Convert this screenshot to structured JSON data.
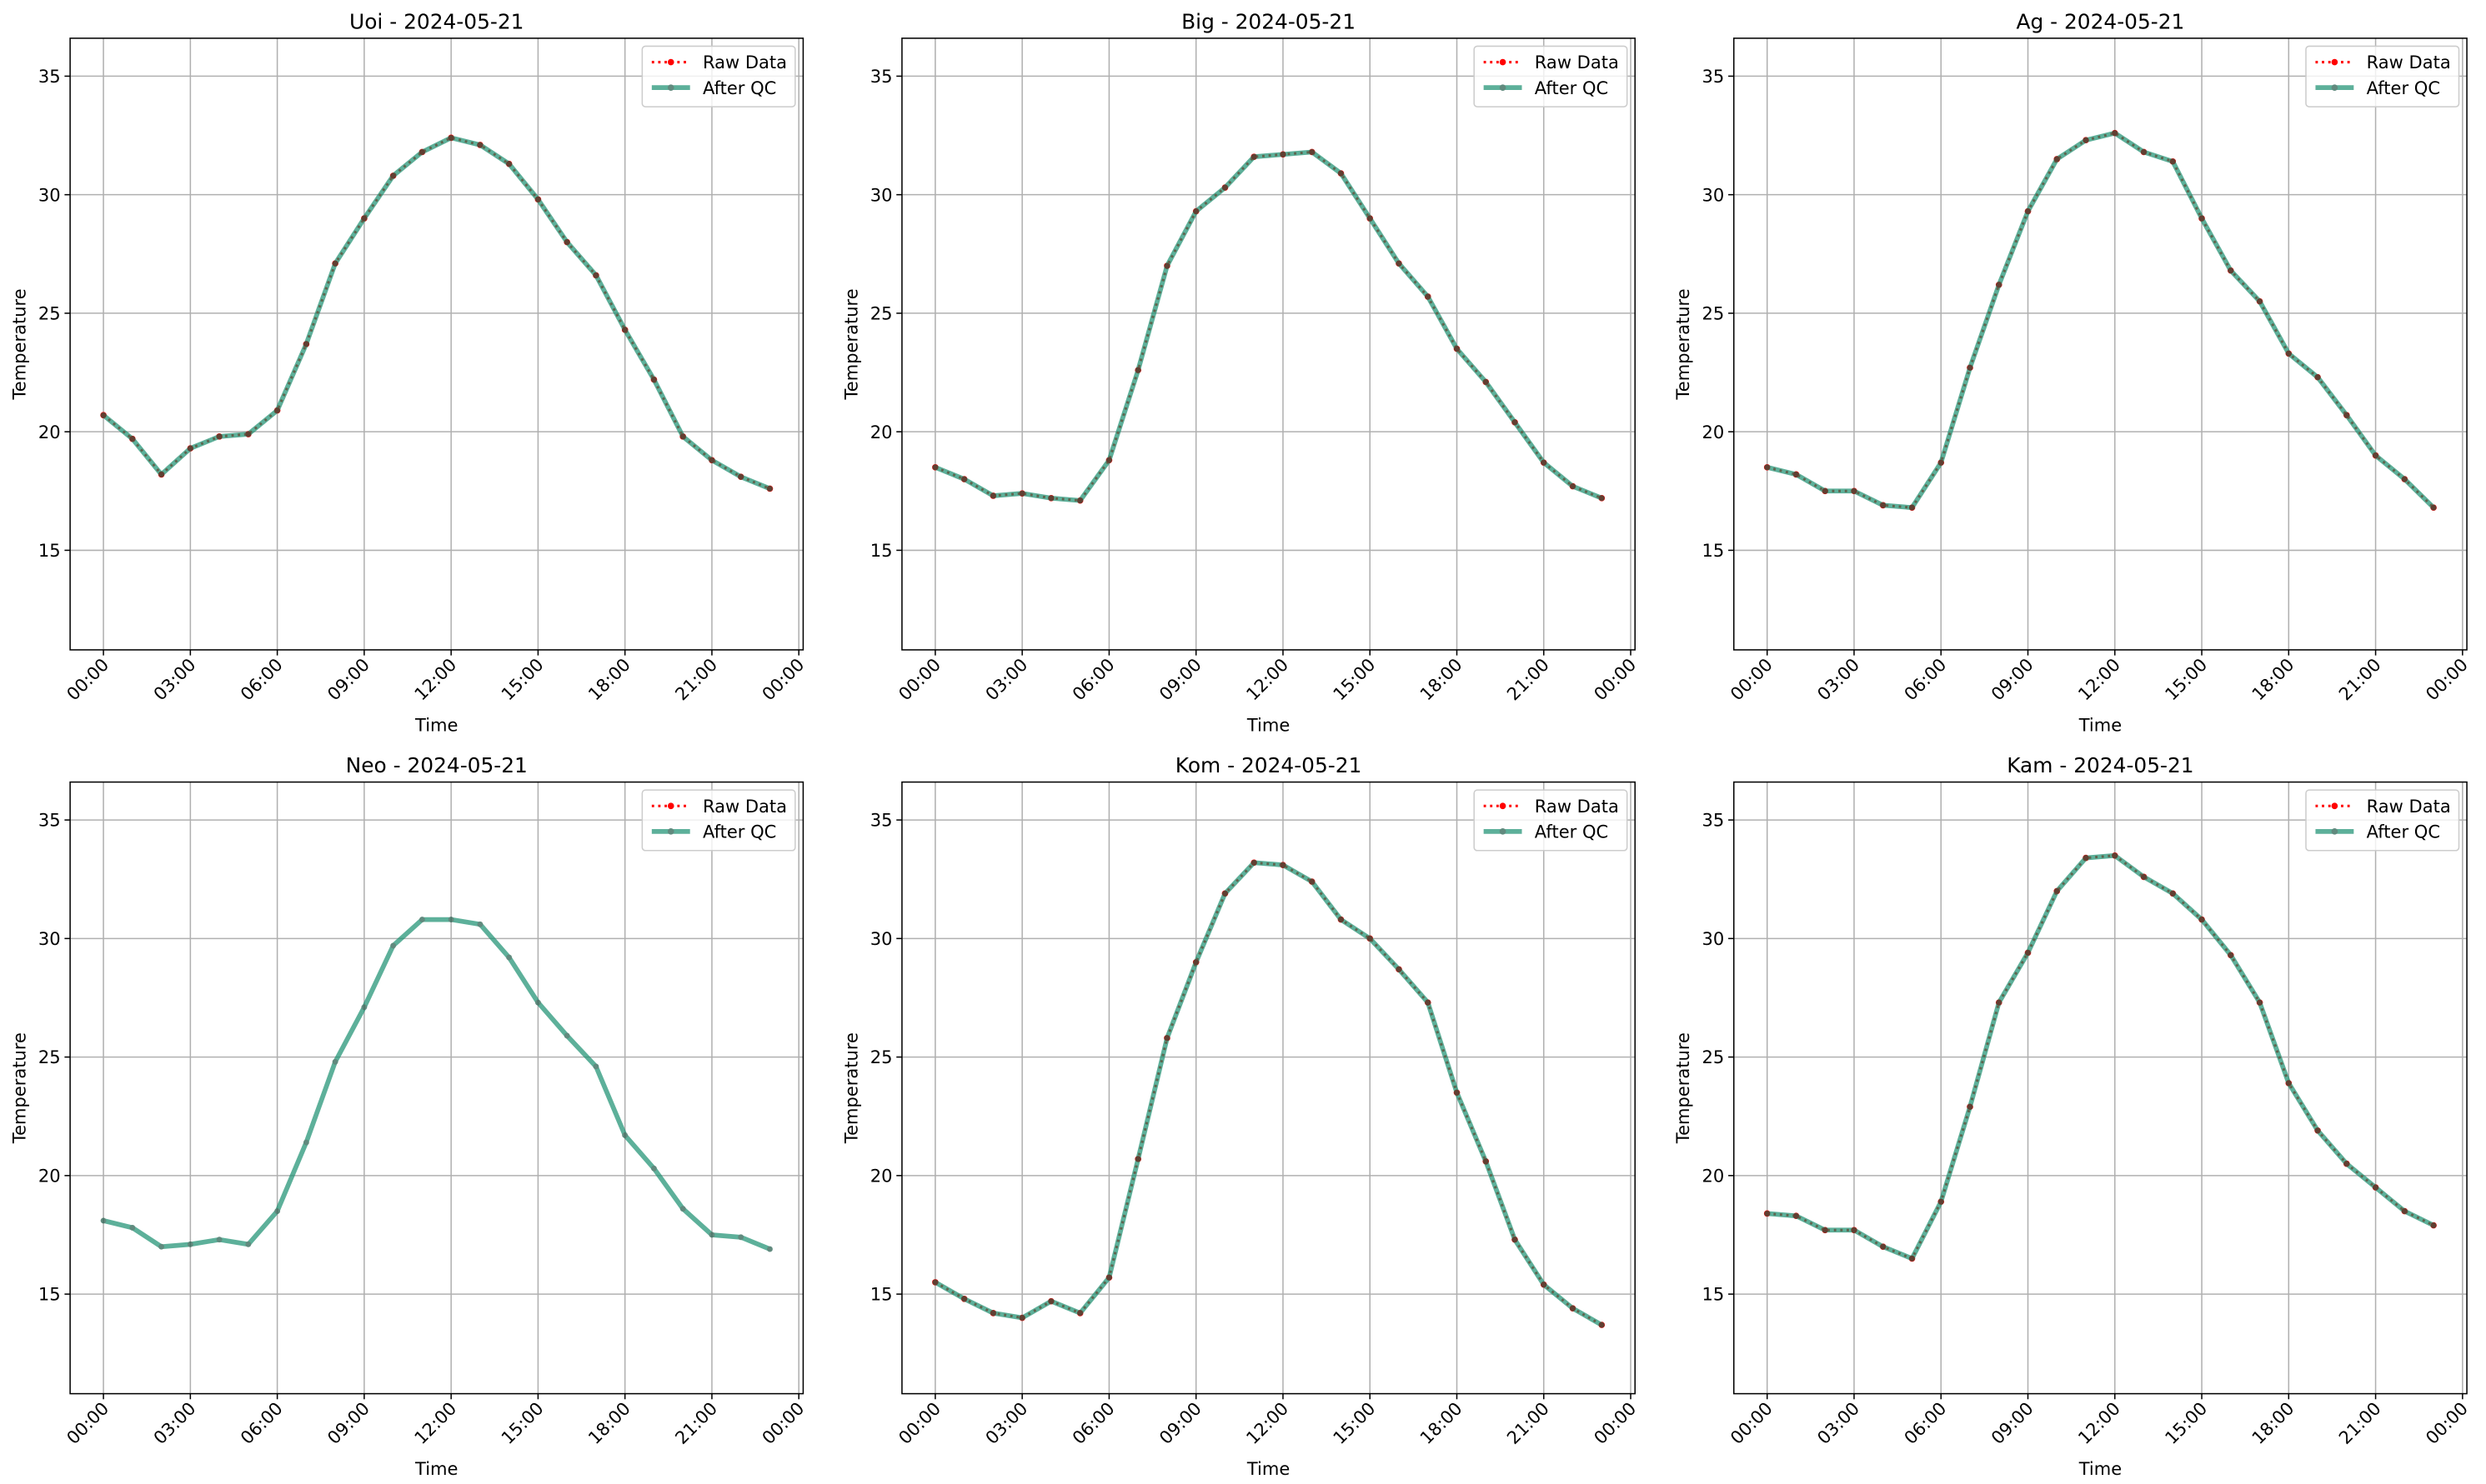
{
  "chart_data": [
    {
      "type": "line",
      "title": "Uoi - 2024-05-21",
      "xlabel": "Time",
      "ylabel": "Temperature",
      "x": [
        0,
        1,
        2,
        3,
        4,
        5,
        6,
        7,
        8,
        9,
        10,
        11,
        12,
        13,
        14,
        15,
        16,
        17,
        18,
        19,
        20,
        21,
        22,
        23
      ],
      "xlim": [
        -1.15,
        24.15
      ],
      "xticks": [
        {
          "value": 0,
          "label": "00:00"
        },
        {
          "value": 3,
          "label": "03:00"
        },
        {
          "value": 6,
          "label": "06:00"
        },
        {
          "value": 9,
          "label": "09:00"
        },
        {
          "value": 12,
          "label": "12:00"
        },
        {
          "value": 15,
          "label": "15:00"
        },
        {
          "value": 18,
          "label": "18:00"
        },
        {
          "value": 21,
          "label": "21:00"
        },
        {
          "value": 24,
          "label": "00:00"
        }
      ],
      "ylim": [
        10.8,
        36.6
      ],
      "yticks": [
        15,
        20,
        25,
        30,
        35
      ],
      "grid": true,
      "legend": "upper right",
      "series": [
        {
          "name": "Raw Data",
          "color": "#ff0000",
          "values": [
            20.7,
            19.7,
            18.2,
            19.3,
            19.8,
            19.9,
            20.9,
            23.7,
            27.1,
            29.0,
            30.8,
            31.8,
            32.4,
            32.1,
            31.3,
            29.8,
            28.0,
            26.6,
            24.3,
            22.2,
            19.8,
            18.8,
            18.1,
            17.6
          ]
        },
        {
          "name": "After QC",
          "color": "#1a9070",
          "values": [
            20.7,
            19.7,
            18.2,
            19.3,
            19.8,
            19.9,
            20.9,
            23.7,
            27.1,
            29.0,
            30.8,
            31.8,
            32.4,
            32.1,
            31.3,
            29.8,
            28.0,
            26.6,
            24.3,
            22.2,
            19.8,
            18.8,
            18.1,
            17.6
          ]
        }
      ]
    },
    {
      "type": "line",
      "title": "Big - 2024-05-21",
      "xlabel": "Time",
      "ylabel": "Temperature",
      "x": [
        0,
        1,
        2,
        3,
        4,
        5,
        6,
        7,
        8,
        9,
        10,
        11,
        12,
        13,
        14,
        15,
        16,
        17,
        18,
        19,
        20,
        21,
        22,
        23
      ],
      "xlim": [
        -1.15,
        24.15
      ],
      "xticks": [
        {
          "value": 0,
          "label": "00:00"
        },
        {
          "value": 3,
          "label": "03:00"
        },
        {
          "value": 6,
          "label": "06:00"
        },
        {
          "value": 9,
          "label": "09:00"
        },
        {
          "value": 12,
          "label": "12:00"
        },
        {
          "value": 15,
          "label": "15:00"
        },
        {
          "value": 18,
          "label": "18:00"
        },
        {
          "value": 21,
          "label": "21:00"
        },
        {
          "value": 24,
          "label": "00:00"
        }
      ],
      "ylim": [
        10.8,
        36.6
      ],
      "yticks": [
        15,
        20,
        25,
        30,
        35
      ],
      "grid": true,
      "legend": "upper right",
      "series": [
        {
          "name": "Raw Data",
          "color": "#ff0000",
          "values": [
            18.5,
            18.0,
            17.3,
            17.4,
            17.2,
            17.1,
            18.8,
            22.6,
            27.0,
            29.3,
            30.3,
            31.6,
            31.7,
            31.8,
            30.9,
            29.0,
            27.1,
            25.7,
            23.5,
            22.1,
            20.4,
            18.7,
            17.7,
            17.2
          ]
        },
        {
          "name": "After QC",
          "color": "#1a9070",
          "values": [
            18.5,
            18.0,
            17.3,
            17.4,
            17.2,
            17.1,
            18.8,
            22.6,
            27.0,
            29.3,
            30.3,
            31.6,
            31.7,
            31.8,
            30.9,
            29.0,
            27.1,
            25.7,
            23.5,
            22.1,
            20.4,
            18.7,
            17.7,
            17.2
          ]
        }
      ]
    },
    {
      "type": "line",
      "title": "Ag - 2024-05-21",
      "xlabel": "Time",
      "ylabel": "Temperature",
      "x": [
        0,
        1,
        2,
        3,
        4,
        5,
        6,
        7,
        8,
        9,
        10,
        11,
        12,
        13,
        14,
        15,
        16,
        17,
        18,
        19,
        20,
        21,
        22,
        23
      ],
      "xlim": [
        -1.15,
        24.15
      ],
      "xticks": [
        {
          "value": 0,
          "label": "00:00"
        },
        {
          "value": 3,
          "label": "03:00"
        },
        {
          "value": 6,
          "label": "06:00"
        },
        {
          "value": 9,
          "label": "09:00"
        },
        {
          "value": 12,
          "label": "12:00"
        },
        {
          "value": 15,
          "label": "15:00"
        },
        {
          "value": 18,
          "label": "18:00"
        },
        {
          "value": 21,
          "label": "21:00"
        },
        {
          "value": 24,
          "label": "00:00"
        }
      ],
      "ylim": [
        10.8,
        36.6
      ],
      "yticks": [
        15,
        20,
        25,
        30,
        35
      ],
      "grid": true,
      "legend": "upper right",
      "series": [
        {
          "name": "Raw Data",
          "color": "#ff0000",
          "values": [
            18.5,
            18.2,
            17.5,
            17.5,
            16.9,
            16.8,
            18.7,
            22.7,
            26.2,
            29.3,
            31.5,
            32.3,
            32.6,
            31.8,
            31.4,
            29.0,
            26.8,
            25.5,
            23.3,
            22.3,
            20.7,
            19.0,
            18.0,
            16.8
          ]
        },
        {
          "name": "After QC",
          "color": "#1a9070",
          "values": [
            18.5,
            18.2,
            17.5,
            17.5,
            16.9,
            16.8,
            18.7,
            22.7,
            26.2,
            29.3,
            31.5,
            32.3,
            32.6,
            31.8,
            31.4,
            29.0,
            26.8,
            25.5,
            23.3,
            22.3,
            20.7,
            19.0,
            18.0,
            16.8
          ]
        }
      ]
    },
    {
      "type": "line",
      "title": "Neo - 2024-05-21",
      "xlabel": "Time",
      "ylabel": "Temperature",
      "x": [
        0,
        1,
        2,
        3,
        4,
        5,
        6,
        7,
        8,
        9,
        10,
        11,
        12,
        13,
        14,
        15,
        16,
        17,
        18,
        19,
        20,
        21,
        22,
        23
      ],
      "xlim": [
        -1.15,
        24.15
      ],
      "xticks": [
        {
          "value": 0,
          "label": "00:00"
        },
        {
          "value": 3,
          "label": "03:00"
        },
        {
          "value": 6,
          "label": "06:00"
        },
        {
          "value": 9,
          "label": "09:00"
        },
        {
          "value": 12,
          "label": "12:00"
        },
        {
          "value": 15,
          "label": "15:00"
        },
        {
          "value": 18,
          "label": "18:00"
        },
        {
          "value": 21,
          "label": "21:00"
        },
        {
          "value": 24,
          "label": "00:00"
        }
      ],
      "ylim": [
        10.8,
        36.6
      ],
      "yticks": [
        15,
        20,
        25,
        30,
        35
      ],
      "grid": true,
      "legend": "upper right",
      "series": [
        {
          "name": "Raw Data",
          "color": "#ff0000",
          "values": [
            null,
            null,
            null,
            null,
            null,
            null,
            null,
            null,
            null,
            null,
            null,
            null,
            null,
            null,
            null,
            null,
            null,
            null,
            null,
            null,
            null,
            null,
            null,
            null
          ]
        },
        {
          "name": "After QC",
          "color": "#1a9070",
          "values": [
            18.1,
            17.8,
            17.0,
            17.1,
            17.3,
            17.1,
            18.5,
            21.4,
            24.8,
            27.1,
            29.7,
            30.8,
            30.8,
            30.6,
            29.2,
            27.3,
            25.9,
            24.6,
            21.7,
            20.3,
            18.6,
            17.5,
            17.4,
            16.9
          ]
        }
      ]
    },
    {
      "type": "line",
      "title": "Kom - 2024-05-21",
      "xlabel": "Time",
      "ylabel": "Temperature",
      "x": [
        0,
        1,
        2,
        3,
        4,
        5,
        6,
        7,
        8,
        9,
        10,
        11,
        12,
        13,
        14,
        15,
        16,
        17,
        18,
        19,
        20,
        21,
        22,
        23
      ],
      "xlim": [
        -1.15,
        24.15
      ],
      "xticks": [
        {
          "value": 0,
          "label": "00:00"
        },
        {
          "value": 3,
          "label": "03:00"
        },
        {
          "value": 6,
          "label": "06:00"
        },
        {
          "value": 9,
          "label": "09:00"
        },
        {
          "value": 12,
          "label": "12:00"
        },
        {
          "value": 15,
          "label": "15:00"
        },
        {
          "value": 18,
          "label": "18:00"
        },
        {
          "value": 21,
          "label": "21:00"
        },
        {
          "value": 24,
          "label": "00:00"
        }
      ],
      "ylim": [
        10.8,
        36.6
      ],
      "yticks": [
        15,
        20,
        25,
        30,
        35
      ],
      "grid": true,
      "legend": "upper right",
      "series": [
        {
          "name": "Raw Data",
          "color": "#ff0000",
          "values": [
            15.5,
            14.8,
            14.2,
            14.0,
            14.7,
            14.2,
            15.7,
            20.7,
            25.8,
            29.0,
            31.9,
            33.2,
            33.1,
            32.4,
            30.8,
            30.0,
            28.7,
            27.3,
            23.5,
            20.6,
            17.3,
            15.4,
            14.4,
            13.7
          ]
        },
        {
          "name": "After QC",
          "color": "#1a9070",
          "values": [
            15.5,
            14.8,
            14.2,
            14.0,
            14.7,
            14.2,
            15.7,
            20.7,
            25.8,
            29.0,
            31.9,
            33.2,
            33.1,
            32.4,
            30.8,
            30.0,
            28.7,
            27.3,
            23.5,
            20.6,
            17.3,
            15.4,
            14.4,
            13.7
          ]
        }
      ]
    },
    {
      "type": "line",
      "title": "Kam - 2024-05-21",
      "xlabel": "Time",
      "ylabel": "Temperature",
      "x": [
        0,
        1,
        2,
        3,
        4,
        5,
        6,
        7,
        8,
        9,
        10,
        11,
        12,
        13,
        14,
        15,
        16,
        17,
        18,
        19,
        20,
        21,
        22,
        23
      ],
      "xlim": [
        -1.15,
        24.15
      ],
      "xticks": [
        {
          "value": 0,
          "label": "00:00"
        },
        {
          "value": 3,
          "label": "03:00"
        },
        {
          "value": 6,
          "label": "06:00"
        },
        {
          "value": 9,
          "label": "09:00"
        },
        {
          "value": 12,
          "label": "12:00"
        },
        {
          "value": 15,
          "label": "15:00"
        },
        {
          "value": 18,
          "label": "18:00"
        },
        {
          "value": 21,
          "label": "21:00"
        },
        {
          "value": 24,
          "label": "00:00"
        }
      ],
      "ylim": [
        10.8,
        36.6
      ],
      "yticks": [
        15,
        20,
        25,
        30,
        35
      ],
      "grid": true,
      "legend": "upper right",
      "series": [
        {
          "name": "Raw Data",
          "color": "#ff0000",
          "values": [
            18.4,
            18.3,
            17.7,
            17.7,
            17.0,
            16.5,
            18.9,
            22.9,
            27.3,
            29.4,
            32.0,
            33.4,
            33.5,
            32.6,
            31.9,
            30.8,
            29.3,
            27.3,
            23.9,
            21.9,
            20.5,
            19.5,
            18.5,
            17.9
          ]
        },
        {
          "name": "After QC",
          "color": "#1a9070",
          "values": [
            18.4,
            18.3,
            17.7,
            17.7,
            17.0,
            16.5,
            18.9,
            22.9,
            27.3,
            29.4,
            32.0,
            33.4,
            33.5,
            32.6,
            31.9,
            30.8,
            29.3,
            27.3,
            23.9,
            21.9,
            20.5,
            19.5,
            18.5,
            17.9
          ]
        }
      ]
    }
  ]
}
